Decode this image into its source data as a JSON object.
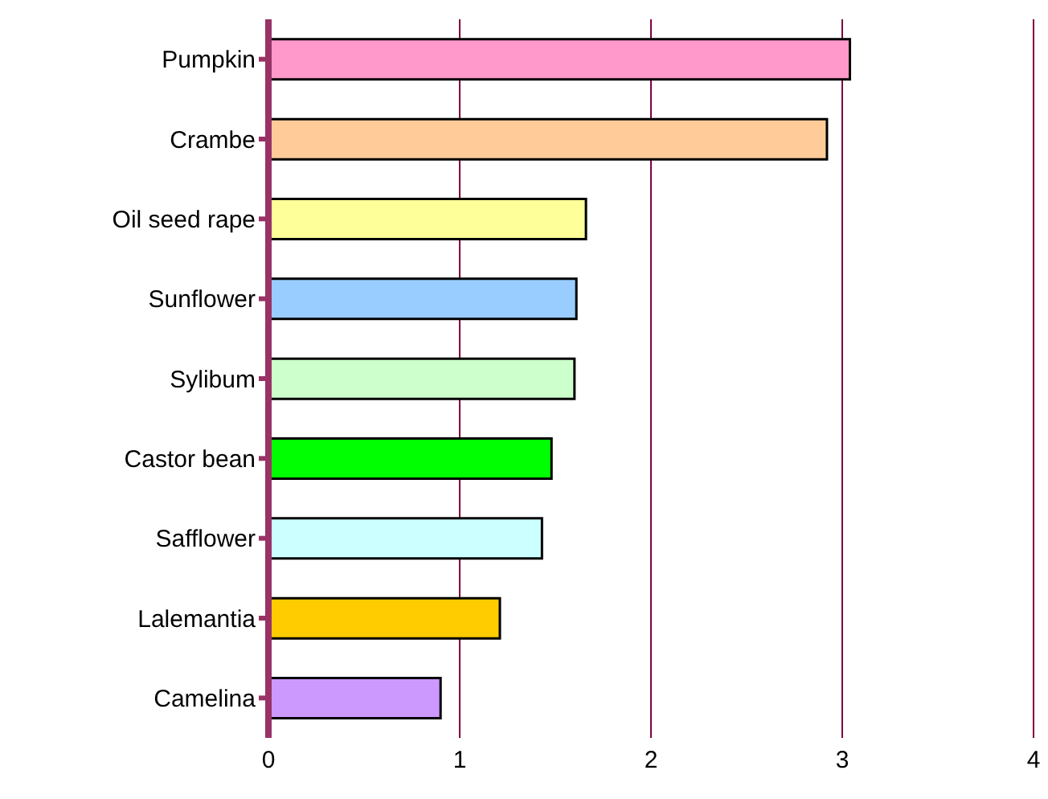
{
  "chart_data": {
    "type": "bar",
    "orientation": "horizontal",
    "categories": [
      "Pumpkin",
      "Crambe",
      "Oil seed rape",
      "Sunflower",
      "Sylibum",
      "Castor bean",
      "Safflower",
      "Lalemantia",
      "Camelina"
    ],
    "values": [
      3.04,
      2.92,
      1.66,
      1.61,
      1.6,
      1.48,
      1.43,
      1.21,
      0.9
    ],
    "colors": [
      "#ff99cc",
      "#ffcc99",
      "#ffff99",
      "#99ccff",
      "#ccffcc",
      "#00ff00",
      "#ccffff",
      "#ffcc00",
      "#cc99ff"
    ],
    "xlim": [
      0,
      4
    ],
    "xticks": [
      0,
      1,
      2,
      3,
      4
    ],
    "grid": "x"
  }
}
